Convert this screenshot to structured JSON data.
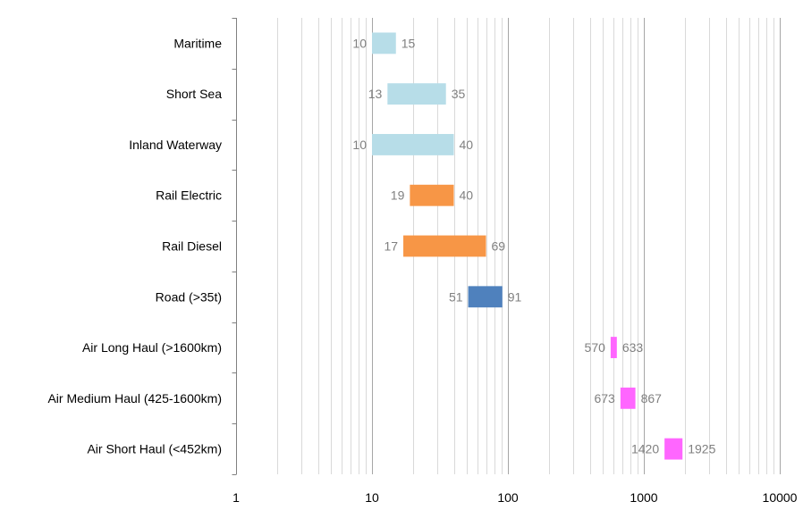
{
  "chart_data": {
    "type": "bar",
    "subtype": "floating-range-horizontal",
    "title": "",
    "xlabel": "",
    "ylabel": "",
    "xscale": "log",
    "xlim": [
      1,
      10000
    ],
    "grid": "vertical-log-minor",
    "x_tick_labels": [
      "1",
      "10",
      "100",
      "1000",
      "10000"
    ],
    "categories": [
      "Maritime",
      "Short Sea",
      "Inland Waterway",
      "Rail Electric",
      "Rail Diesel",
      "Road (>35t)",
      "Air Long Haul (>1600km)",
      "Air Medium Haul (425-1600km)",
      "Air Short Haul (<452km)"
    ],
    "low": [
      10,
      13,
      10,
      19,
      17,
      51,
      570,
      673,
      1420
    ],
    "high": [
      15,
      35,
      40,
      40,
      69,
      91,
      633,
      867,
      1925
    ],
    "low_labels": [
      "10",
      "13",
      "10",
      "19",
      "17",
      "51",
      "570",
      "673",
      "1420"
    ],
    "high_labels": [
      "15",
      "35",
      "40",
      "40",
      "69",
      "91",
      "633",
      "867",
      "1925"
    ],
    "colors": [
      "#b7dde8",
      "#b7dde8",
      "#b7dde8",
      "#f79646",
      "#f79646",
      "#4f81bd",
      "#ff66ff",
      "#ff66ff",
      "#ff66ff"
    ],
    "legend": "none"
  }
}
